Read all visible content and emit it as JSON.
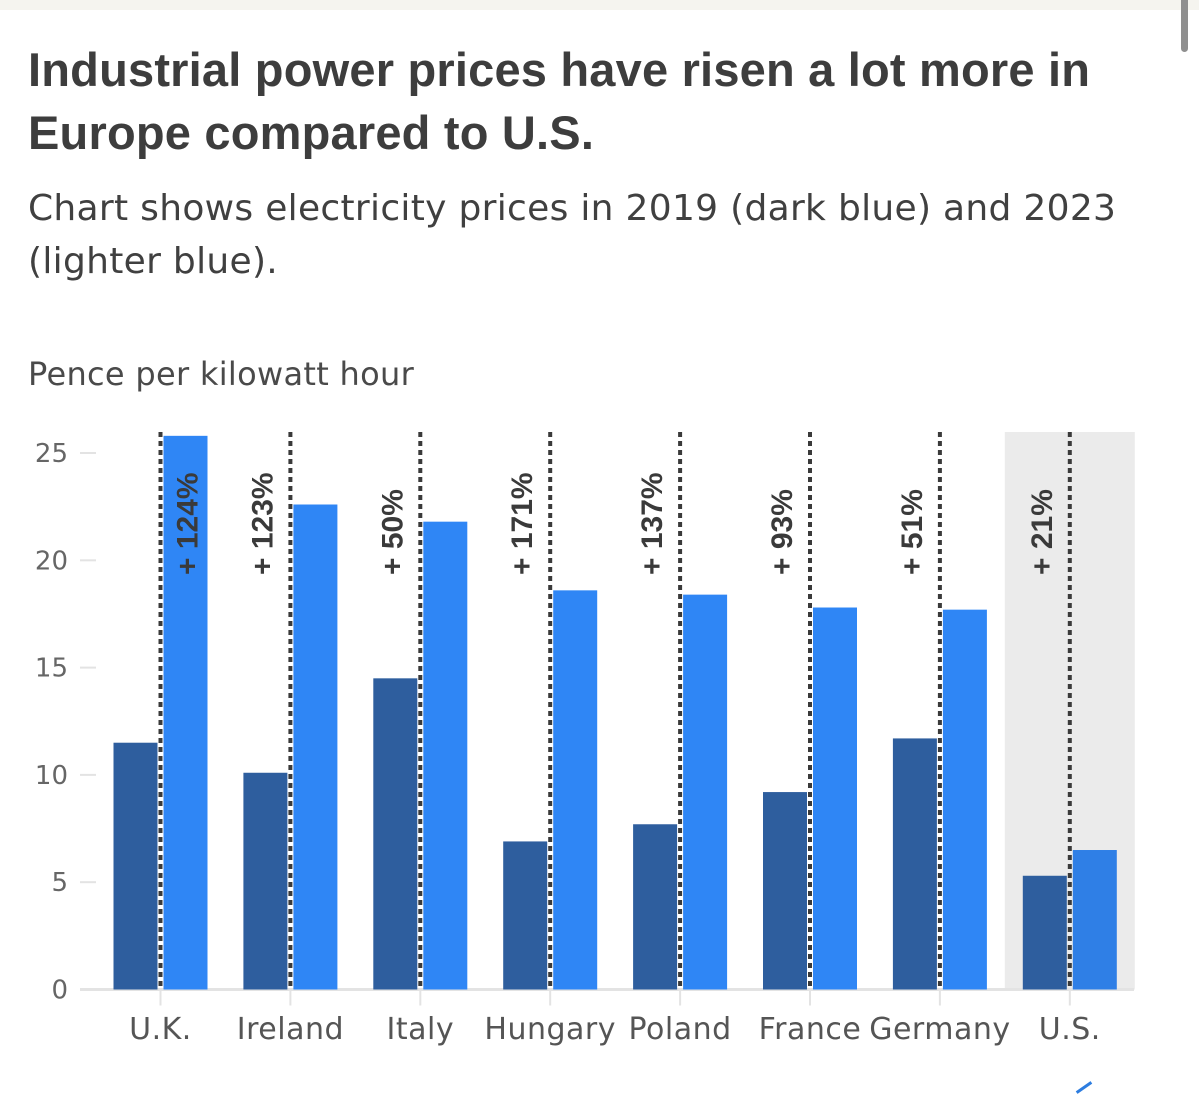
{
  "header": {
    "title": "Industrial power prices have risen a lot more in Europe compared to U.S.",
    "subtitle": "Chart shows electricity prices in 2019 (dark blue) and 2023 (lighter blue).",
    "unit_label": "Pence per kilowatt hour"
  },
  "colors": {
    "series_2019": "#2e5e9e",
    "series_2023": "#2f86f5",
    "series_2023_highlight": "#2f7fe6",
    "highlight_band": "#ebebeb",
    "dotted_line": "#3a3a3a",
    "axis": "#e3e3e3"
  },
  "chart_data": {
    "type": "bar",
    "title": "Industrial power prices have risen a lot more in Europe compared to U.S.",
    "subtitle": "Chart shows electricity prices in 2019 (dark blue) and 2023 (lighter blue).",
    "xlabel": "",
    "ylabel": "Pence per kilowatt hour",
    "ylim": [
      0,
      25
    ],
    "yticks": [
      0,
      5,
      10,
      15,
      20,
      25
    ],
    "ytick_labels": [
      "0",
      "5",
      "10",
      "15",
      "20",
      "25"
    ],
    "grid": false,
    "legend": "none (described in subtitle)",
    "categories": [
      "U.K.",
      "Ireland",
      "Italy",
      "Hungary",
      "Poland",
      "France",
      "Germany",
      "U.S."
    ],
    "series": [
      {
        "name": "2019",
        "values": [
          11.5,
          10.1,
          14.5,
          6.9,
          7.7,
          9.2,
          11.7,
          5.3
        ]
      },
      {
        "name": "2023",
        "values": [
          25.8,
          22.6,
          21.8,
          18.6,
          18.4,
          17.8,
          17.7,
          6.5
        ]
      }
    ],
    "annotations": [
      "+ 124%",
      "+ 123%",
      "+ 50%",
      "+ 171%",
      "+ 137%",
      "+ 93%",
      "+ 51%",
      "+ 21%"
    ],
    "highlighted_category": "U.S."
  }
}
